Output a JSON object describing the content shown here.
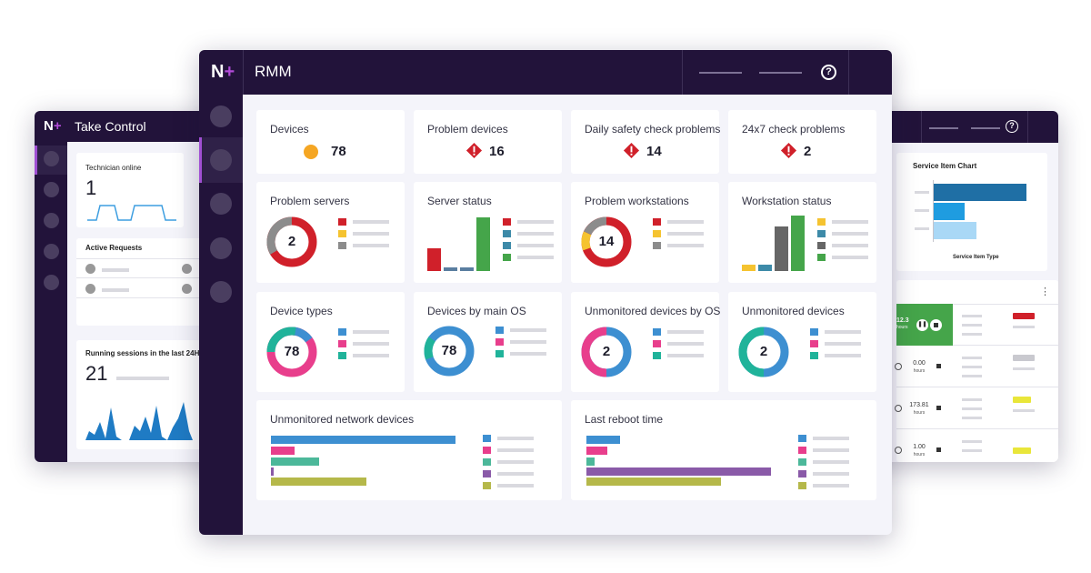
{
  "left_window": {
    "title": "Take Control",
    "logo": "N",
    "technician_online": {
      "label": "Technician online",
      "value": "1"
    },
    "active_requests": {
      "label": "Active Requests"
    },
    "running_sessions": {
      "label": "Running sessions in the last 24H",
      "value": "21"
    }
  },
  "main_window": {
    "title": "RMM",
    "logo": "N",
    "help_icon": "?",
    "stats": [
      {
        "label": "Devices",
        "value": "78",
        "icon": "circle-icon"
      },
      {
        "label": "Problem devices",
        "value": "16",
        "icon": "alert-icon"
      },
      {
        "label": "Daily safety check problems",
        "value": "14",
        "icon": "alert-icon"
      },
      {
        "label": "24x7 check problems",
        "value": "2",
        "icon": "alert-icon"
      }
    ],
    "cards": {
      "problem_servers": {
        "title": "Problem servers",
        "center": "2"
      },
      "server_status": {
        "title": "Server status"
      },
      "problem_workstations": {
        "title": "Problem workstations",
        "center": "14"
      },
      "workstation_status": {
        "title": "Workstation status"
      },
      "device_types": {
        "title": "Device types",
        "center": "78"
      },
      "devices_by_os": {
        "title": "Devices by main OS",
        "center": "78"
      },
      "unmonitored_by_os": {
        "title": "Unmonitored devices by OS",
        "center": "2"
      },
      "unmonitored_devices": {
        "title": "Unmonitored devices",
        "center": "2"
      },
      "unmonitored_network": {
        "title": "Unmonitored network devices"
      },
      "last_reboot": {
        "title": "Last reboot time"
      }
    }
  },
  "right_window": {
    "help_icon": "?",
    "chart_title": "Service Item Chart",
    "chart_axis": "Service Item Type",
    "menu_icon": "⋮",
    "timer_value": "12.3",
    "timer_unit": "hours",
    "rows": [
      {
        "value": "0.00",
        "unit": "hours"
      },
      {
        "value": "173.81",
        "unit": "hours"
      },
      {
        "value": "1.00",
        "unit": "hours"
      }
    ]
  },
  "colors": {
    "nav": "#22133a",
    "red": "#d0202a",
    "green": "#45a54a",
    "blue": "#3d8fd1",
    "pink": "#e83e8c",
    "teal": "#20b39a",
    "yellow": "#f5c330",
    "grey": "#8c8c8c",
    "purple": "#8a5aa8",
    "olive": "#b5b84a"
  }
}
